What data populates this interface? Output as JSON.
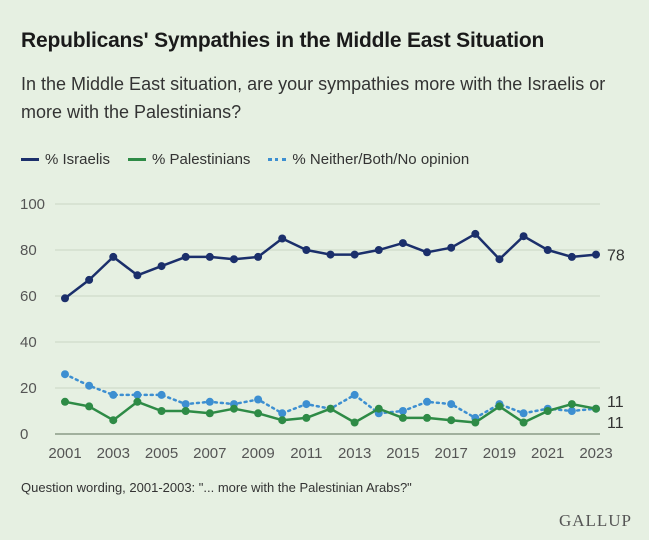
{
  "title": "Republicans' Sympathies in the Middle East Situation",
  "subtitle": "In the Middle East situation, are your sympathies more with the Israelis or more with the Palestinians?",
  "note": "Question wording, 2001-2003: \"... more with the Palestinian Arabs?\"",
  "logo": "GALLUP",
  "chart_data": {
    "type": "line",
    "x": [
      2001,
      2002,
      2003,
      2004,
      2005,
      2006,
      2007,
      2008,
      2009,
      2010,
      2011,
      2012,
      2013,
      2014,
      2015,
      2016,
      2017,
      2018,
      2019,
      2020,
      2021,
      2022,
      2023
    ],
    "x_tick_labels": [
      "2001",
      "2003",
      "2005",
      "2007",
      "2009",
      "2011",
      "2013",
      "2015",
      "2017",
      "2019",
      "2021",
      "2023"
    ],
    "y_tick_labels": [
      "0",
      "20",
      "40",
      "60",
      "80",
      "100"
    ],
    "ylim": [
      0,
      100
    ],
    "grid": true,
    "legend_position": "top-left",
    "series": [
      {
        "name": "% Israelis",
        "color": "#1b2f6b",
        "style": "solid",
        "values": [
          59,
          67,
          77,
          69,
          73,
          77,
          77,
          76,
          77,
          85,
          80,
          78,
          78,
          80,
          83,
          79,
          81,
          87,
          76,
          86,
          80,
          77,
          78
        ],
        "end_label": "78"
      },
      {
        "name": "% Palestinians",
        "color": "#2e8b46",
        "style": "solid",
        "values": [
          14,
          12,
          6,
          14,
          10,
          10,
          9,
          11,
          9,
          6,
          7,
          11,
          5,
          11,
          7,
          7,
          6,
          5,
          12,
          5,
          10,
          13,
          11
        ],
        "end_label": "11"
      },
      {
        "name": "% Neither/Both/No opinion",
        "color": "#3d8fd1",
        "style": "dotted",
        "values": [
          26,
          21,
          17,
          17,
          17,
          13,
          14,
          13,
          15,
          9,
          13,
          11,
          17,
          9,
          10,
          14,
          13,
          7,
          13,
          9,
          11,
          10,
          11
        ],
        "end_label": "11"
      }
    ]
  }
}
